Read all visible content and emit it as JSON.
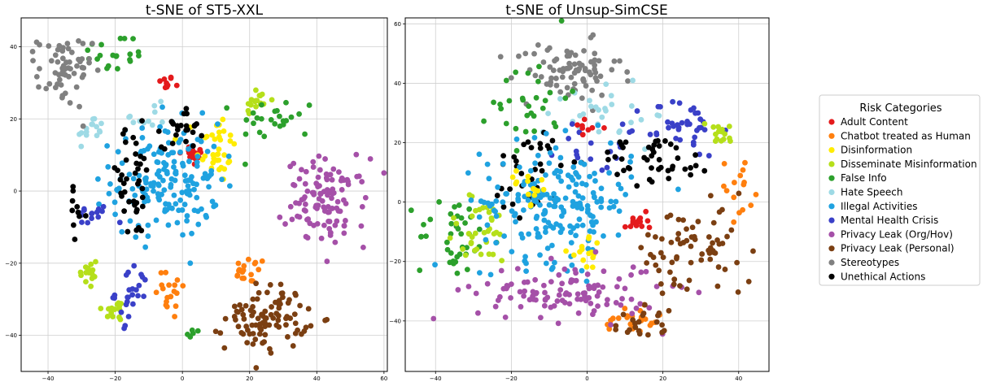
{
  "chart_data": [
    {
      "type": "scatter",
      "title": "t-SNE of ST5-XXL",
      "xlim": [
        -48,
        61
      ],
      "ylim": [
        -50,
        48
      ],
      "xticks": [
        -40,
        -20,
        0,
        20,
        40,
        60
      ],
      "yticks": [
        -40,
        -20,
        0,
        20,
        40
      ],
      "grid": true,
      "clusters": [
        {
          "category": "Adult Content",
          "cx": -5,
          "cy": 30,
          "sx": 1.2,
          "sy": 1,
          "n": 10
        },
        {
          "category": "Adult Content",
          "cx": 3,
          "cy": 10,
          "sx": 2,
          "sy": 1.5,
          "n": 22
        },
        {
          "category": "Chatbot treated as Human",
          "cx": 20,
          "cy": -22,
          "sx": 2.5,
          "sy": 1.8,
          "n": 18
        },
        {
          "category": "Chatbot treated as Human",
          "cx": -3,
          "cy": -28,
          "sx": 2.5,
          "sy": 4,
          "n": 18
        },
        {
          "category": "Disinformation",
          "cx": 10,
          "cy": 12,
          "sx": 3,
          "sy": 5,
          "n": 35
        },
        {
          "category": "Disseminate Misinformation",
          "cx": 22,
          "cy": 25,
          "sx": 2,
          "sy": 2,
          "n": 18
        },
        {
          "category": "Disseminate Misinformation",
          "cx": -28,
          "cy": -23,
          "sx": 1.5,
          "sy": 2.5,
          "n": 15
        },
        {
          "category": "Disseminate Misinformation",
          "cx": -20,
          "cy": -33,
          "sx": 2,
          "sy": 1.5,
          "n": 15
        },
        {
          "category": "False Info",
          "cx": -20,
          "cy": 38,
          "sx": 5,
          "sy": 3,
          "n": 20
        },
        {
          "category": "False Info",
          "cx": 28,
          "cy": 20,
          "sx": 6,
          "sy": 3,
          "n": 25
        },
        {
          "category": "False Info",
          "cx": 3,
          "cy": -40,
          "sx": 1,
          "sy": 1,
          "n": 5
        },
        {
          "category": "Hate Speech",
          "cx": -27,
          "cy": 17,
          "sx": 2,
          "sy": 2,
          "n": 15
        },
        {
          "category": "Hate Speech",
          "cx": -10,
          "cy": 20,
          "sx": 4,
          "sy": 2,
          "n": 12
        },
        {
          "category": "Illegal Activities",
          "cx": -5,
          "cy": 3,
          "sx": 8,
          "sy": 8,
          "n": 170
        },
        {
          "category": "Mental Health Crisis",
          "cx": -27,
          "cy": -7,
          "sx": 3,
          "sy": 1.5,
          "n": 15
        },
        {
          "category": "Mental Health Crisis",
          "cx": -15,
          "cy": -28,
          "sx": 2.5,
          "sy": 4,
          "n": 25
        },
        {
          "category": "Privacy Leak (Org/Hov)",
          "cx": 43,
          "cy": -3,
          "sx": 6,
          "sy": 6,
          "n": 110
        },
        {
          "category": "Privacy Leak (Personal)",
          "cx": 25,
          "cy": -35,
          "sx": 6,
          "sy": 4.5,
          "n": 95
        },
        {
          "category": "Stereotypes",
          "cx": -35,
          "cy": 33,
          "sx": 4,
          "sy": 5,
          "n": 60
        },
        {
          "category": "Unethical Actions",
          "cx": -15,
          "cy": 2,
          "sx": 4,
          "sy": 8,
          "n": 40
        },
        {
          "category": "Unethical Actions",
          "cx": 0,
          "cy": 18,
          "sx": 3,
          "sy": 3,
          "n": 25
        },
        {
          "category": "Unethical Actions",
          "cx": -31,
          "cy": -6,
          "sx": 1.5,
          "sy": 3,
          "n": 10
        }
      ]
    },
    {
      "type": "scatter",
      "title": "t-SNE of Unsup-SimCSE",
      "xlim": [
        -48,
        48
      ],
      "ylim": [
        -57,
        62
      ],
      "xticks": [
        -40,
        -20,
        0,
        20,
        40
      ],
      "yticks": [
        -40,
        -20,
        0,
        20,
        40,
        60
      ],
      "grid": true,
      "clusters": [
        {
          "category": "Stereotypes",
          "cx": -5,
          "cy": 44,
          "sx": 7,
          "sy": 5,
          "n": 80
        },
        {
          "category": "Hate Speech",
          "cx": 5,
          "cy": 30,
          "sx": 8,
          "sy": 6,
          "n": 30
        },
        {
          "category": "False Info",
          "cx": -15,
          "cy": 35,
          "sx": 5,
          "sy": 8,
          "n": 30
        },
        {
          "category": "False Info",
          "cx": -35,
          "cy": -12,
          "sx": 5,
          "sy": 7,
          "n": 40
        },
        {
          "category": "Mental Health Crisis",
          "cx": 25,
          "cy": 25,
          "sx": 5,
          "sy": 5,
          "n": 40
        },
        {
          "category": "Mental Health Crisis",
          "cx": 2,
          "cy": 18,
          "sx": 5,
          "sy": 4,
          "n": 15
        },
        {
          "category": "Disseminate Misinformation",
          "cx": 35,
          "cy": 23,
          "sx": 2,
          "sy": 3,
          "n": 15
        },
        {
          "category": "Disseminate Misinformation",
          "cx": -28,
          "cy": -10,
          "sx": 5,
          "sy": 6,
          "n": 35
        },
        {
          "category": "Unethical Actions",
          "cx": 18,
          "cy": 14,
          "sx": 8,
          "sy": 4,
          "n": 45
        },
        {
          "category": "Unethical Actions",
          "cx": -15,
          "cy": 10,
          "sx": 5,
          "sy": 8,
          "n": 35
        },
        {
          "category": "Illegal Activities",
          "cx": -8,
          "cy": 0,
          "sx": 10,
          "sy": 10,
          "n": 200
        },
        {
          "category": "Adult Content",
          "cx": 0,
          "cy": 25,
          "sx": 2,
          "sy": 1.5,
          "n": 8
        },
        {
          "category": "Adult Content",
          "cx": 13,
          "cy": -6,
          "sx": 1.5,
          "sy": 2,
          "n": 15
        },
        {
          "category": "Disinformation",
          "cx": 0,
          "cy": -18,
          "sx": 2.5,
          "sy": 2.5,
          "n": 15
        },
        {
          "category": "Disinformation",
          "cx": -15,
          "cy": 5,
          "sx": 3,
          "sy": 3,
          "n": 15
        },
        {
          "category": "Chatbot treated as Human",
          "cx": 40,
          "cy": 5,
          "sx": 3,
          "sy": 5,
          "n": 15
        },
        {
          "category": "Chatbot treated as Human",
          "cx": 12,
          "cy": -40,
          "sx": 4,
          "sy": 3,
          "n": 25
        },
        {
          "category": "Privacy Leak (Org/Hov)",
          "cx": -5,
          "cy": -30,
          "sx": 12,
          "sy": 5,
          "n": 110
        },
        {
          "category": "Privacy Leak (Personal)",
          "cx": 28,
          "cy": -17,
          "sx": 8,
          "sy": 8,
          "n": 70
        },
        {
          "category": "Privacy Leak (Personal)",
          "cx": 15,
          "cy": -42,
          "sx": 4,
          "sy": 3,
          "n": 20
        }
      ]
    }
  ],
  "legend": {
    "title": "Risk Categories",
    "placement": "right",
    "items": [
      {
        "label": "Adult Content",
        "color": "#e41a1c"
      },
      {
        "label": "Chatbot treated as Human",
        "color": "#ff7f0e"
      },
      {
        "label": "Disinformation",
        "color": "#ffec00"
      },
      {
        "label": "Disseminate Misinformation",
        "color": "#b5df1a"
      },
      {
        "label": "False Info",
        "color": "#2ca02c"
      },
      {
        "label": "Hate Speech",
        "color": "#9edae5"
      },
      {
        "label": "Illegal Activities",
        "color": "#1fa2e0"
      },
      {
        "label": "Mental Health Crisis",
        "color": "#3a40c8"
      },
      {
        "label": "Privacy Leak (Org/Hov)",
        "color": "#a550a8"
      },
      {
        "label": "Privacy Leak (Personal)",
        "color": "#7b3f12"
      },
      {
        "label": "Stereotypes",
        "color": "#808080"
      },
      {
        "label": "Unethical Actions",
        "color": "#000000"
      }
    ]
  }
}
